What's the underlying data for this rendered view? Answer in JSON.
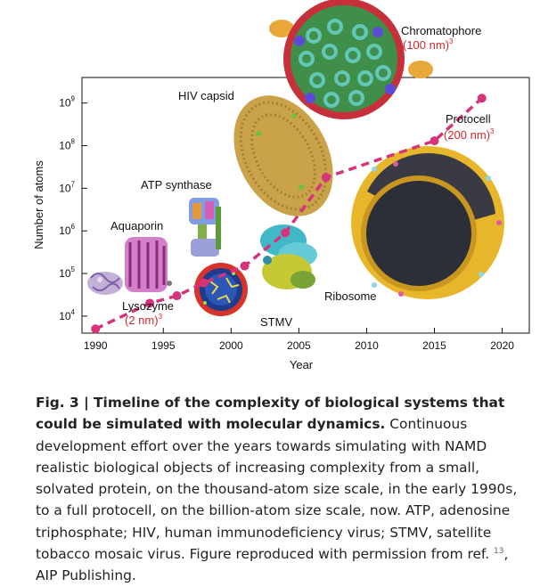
{
  "figure": {
    "chart_data": {
      "type": "scatter",
      "xlabel": "Year",
      "ylabel": "Number of atoms",
      "y_scale": "log",
      "xlim": [
        1989,
        2022
      ],
      "ylim_exponent": [
        3.6,
        9.6
      ],
      "x_ticks": [
        1990,
        1995,
        2000,
        2005,
        2010,
        2015,
        2020
      ],
      "y_ticks": [
        {
          "base": "10",
          "exp": "4",
          "value": 10000
        },
        {
          "base": "10",
          "exp": "5",
          "value": 100000
        },
        {
          "base": "10",
          "exp": "6",
          "value": 1000000
        },
        {
          "base": "10",
          "exp": "7",
          "value": 10000000
        },
        {
          "base": "10",
          "exp": "8",
          "value": 100000000
        },
        {
          "base": "10",
          "exp": "9",
          "value": 1000000000
        }
      ],
      "points": [
        {
          "x": 1990,
          "y": 5000
        },
        {
          "x": 1994,
          "y": 20000
        },
        {
          "x": 1996,
          "y": 30000
        },
        {
          "x": 1998,
          "y": 60000
        },
        {
          "x": 2001,
          "y": 150000
        },
        {
          "x": 2004,
          "y": 900000
        },
        {
          "x": 2007,
          "y": 18000000
        },
        {
          "x": 2015,
          "y": 130000000
        },
        {
          "x": 2018.5,
          "y": 1300000000
        }
      ],
      "line_color": "#d6337a",
      "point_color": "#d6337a"
    },
    "labels": {
      "hiv": "HIV capsid",
      "atp": "ATP synthase",
      "aquaporin": "Aquaporin",
      "lysozyme": "Lysozyme",
      "lysozyme_size": "(2 nm)",
      "lysozyme_exp": "3",
      "stmv": "STMV",
      "ribosome": "Ribosome",
      "chromatophore": "Chromatophore",
      "chromatophore_size": "(100 nm)",
      "chromatophore_exp": "3",
      "protocell": "Protocell",
      "protocell_size": "(200 nm)",
      "protocell_exp": "3"
    },
    "colors": {
      "size_label": "#d0282e",
      "capsid": "#c9a24a",
      "protocell": "#e8b62a",
      "chromatophore": "#c6303a",
      "ribosome": "#40b8c8",
      "stmv_shell": "#d8322c"
    }
  },
  "caption": {
    "fig_label": "Fig. 3 | Timeline of the complexity of biological systems that could be simulated with molecular dynamics.",
    "body": " Continuous development effort over the years towards simulating with NAMD realistic biological objects of increasing complexity from a small, solvated protein, on the thousand-atom size scale, in the early 1990s, to a full protocell, on the billion-atom size scale, now. ATP, adenosine triphosphate; HIV, human immunodeficiency virus; STMV, satellite tobacco mosaic virus. Figure reproduced with permission from ref. ",
    "ref": "13",
    "tail": ", AIP Publishing."
  }
}
